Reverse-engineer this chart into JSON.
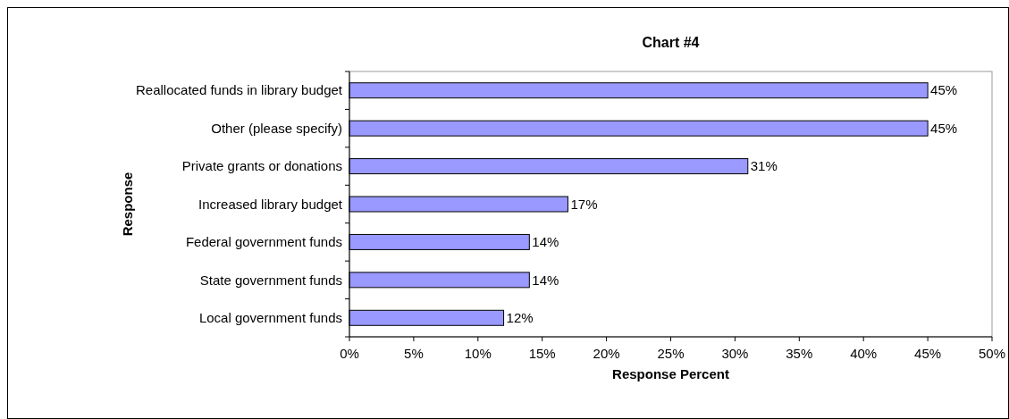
{
  "chart_data": {
    "type": "bar",
    "orientation": "horizontal",
    "title": "Chart #4",
    "xlabel": "Response Percent",
    "ylabel": "Response",
    "categories": [
      "Reallocated funds in library budget",
      "Other (please specify)",
      "Private grants or donations",
      "Increased library budget",
      "Federal government funds",
      "State government funds",
      "Local government funds"
    ],
    "values": [
      45,
      45,
      31,
      17,
      14,
      14,
      12
    ],
    "value_labels": [
      "45%",
      "45%",
      "31%",
      "17%",
      "14%",
      "14%",
      "12%"
    ],
    "color": "#9999ff",
    "xlim": [
      0,
      50
    ],
    "xticks": [
      {
        "value": 0,
        "label": "0%"
      },
      {
        "value": 5,
        "label": "5%"
      },
      {
        "value": 10,
        "label": "10%"
      },
      {
        "value": 15,
        "label": "15%"
      },
      {
        "value": 20,
        "label": "20%"
      },
      {
        "value": 25,
        "label": "25%"
      },
      {
        "value": 30,
        "label": "30%"
      },
      {
        "value": 35,
        "label": "35%"
      },
      {
        "value": 40,
        "label": "40%"
      },
      {
        "value": 45,
        "label": "45%"
      },
      {
        "value": 50,
        "label": "50%"
      }
    ],
    "grid": false
  }
}
